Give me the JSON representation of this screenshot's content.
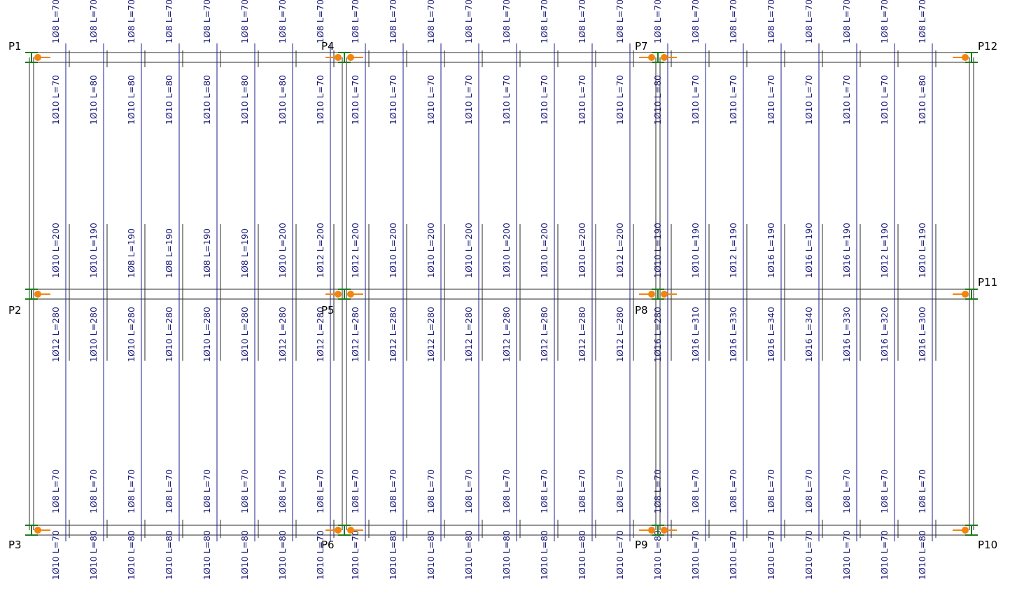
{
  "colors": {
    "text": "#1a1a7a",
    "beam_line": "#2a2a2a",
    "rebar_line": "#1c1c8c",
    "node": "#f2850f",
    "support": "#1e7a1e"
  },
  "nodes": {
    "P1": "P1",
    "P2": "P2",
    "P3": "P3",
    "P4": "P4",
    "P5": "P5",
    "P6": "P6",
    "P7": "P7",
    "P8": "P8",
    "P9": "P9",
    "P10": "P10",
    "P11": "P11",
    "P12": "P12"
  },
  "slabs": [
    {
      "name": "slab-left",
      "strips": [
        {
          "top_a": "1Ø8 L=70",
          "top_b": "1Ø10 L=70",
          "mid_a": "1Ø10 L=200",
          "mid_b": "1Ø12 L=280",
          "bot_a": "1Ø8 L=70",
          "bot_b": "1Ø10 L=70"
        },
        {
          "top_a": "1Ø8 L=70",
          "top_b": "1Ø10 L=80",
          "mid_a": "1Ø10 L=190",
          "mid_b": "1Ø10 L=280",
          "bot_a": "1Ø8 L=70",
          "bot_b": "1Ø10 L=80"
        },
        {
          "top_a": "1Ø8 L=70",
          "top_b": "1Ø10 L=80",
          "mid_a": "1Ø8 L=190",
          "mid_b": "1Ø10 L=280",
          "bot_a": "1Ø8 L=70",
          "bot_b": "1Ø10 L=80"
        },
        {
          "top_a": "1Ø8 L=70",
          "top_b": "1Ø10 L=80",
          "mid_a": "1Ø8 L=190",
          "mid_b": "1Ø10 L=280",
          "bot_a": "1Ø8 L=70",
          "bot_b": "1Ø10 L=80"
        },
        {
          "top_a": "1Ø8 L=70",
          "top_b": "1Ø10 L=80",
          "mid_a": "1Ø8 L=190",
          "mid_b": "1Ø10 L=280",
          "bot_a": "1Ø8 L=70",
          "bot_b": "1Ø10 L=80"
        },
        {
          "top_a": "1Ø8 L=70",
          "top_b": "1Ø10 L=80",
          "mid_a": "1Ø8 L=190",
          "mid_b": "1Ø10 L=280",
          "bot_a": "1Ø8 L=70",
          "bot_b": "1Ø10 L=80"
        },
        {
          "top_a": "1Ø8 L=70",
          "top_b": "1Ø10 L=80",
          "mid_a": "1Ø10 L=200",
          "mid_b": "1Ø12 L=280",
          "bot_a": "1Ø8 L=70",
          "bot_b": "1Ø10 L=80"
        },
        {
          "top_a": "1Ø8 L=70",
          "top_b": "1Ø10 L=70",
          "mid_a": "1Ø12 L=200",
          "mid_b": "1Ø12 L=280",
          "bot_a": "1Ø8 L=70",
          "bot_b": "1Ø10 L=70"
        }
      ]
    },
    {
      "name": "slab-middle",
      "strips": [
        {
          "top_a": "1Ø8 L=70",
          "top_b": "1Ø10 L=70",
          "mid_a": "1Ø12 L=200",
          "mid_b": "1Ø12 L=280",
          "bot_a": "1Ø8 L=70",
          "bot_b": "1Ø10 L=70"
        },
        {
          "top_a": "1Ø8 L=70",
          "top_b": "1Ø10 L=70",
          "mid_a": "1Ø10 L=200",
          "mid_b": "1Ø12 L=280",
          "bot_a": "1Ø8 L=70",
          "bot_b": "1Ø10 L=80"
        },
        {
          "top_a": "1Ø8 L=70",
          "top_b": "1Ø10 L=70",
          "mid_a": "1Ø10 L=200",
          "mid_b": "1Ø12 L=280",
          "bot_a": "1Ø8 L=70",
          "bot_b": "1Ø10 L=80"
        },
        {
          "top_a": "1Ø8 L=70",
          "top_b": "1Ø10 L=70",
          "mid_a": "1Ø10 L=200",
          "mid_b": "1Ø12 L=280",
          "bot_a": "1Ø8 L=70",
          "bot_b": "1Ø10 L=80"
        },
        {
          "top_a": "1Ø8 L=70",
          "top_b": "1Ø10 L=70",
          "mid_a": "1Ø10 L=200",
          "mid_b": "1Ø12 L=280",
          "bot_a": "1Ø8 L=70",
          "bot_b": "1Ø10 L=80"
        },
        {
          "top_a": "1Ø8 L=70",
          "top_b": "1Ø10 L=70",
          "mid_a": "1Ø10 L=200",
          "mid_b": "1Ø12 L=280",
          "bot_a": "1Ø8 L=70",
          "bot_b": "1Ø10 L=80"
        },
        {
          "top_a": "1Ø8 L=70",
          "top_b": "1Ø10 L=70",
          "mid_a": "1Ø10 L=200",
          "mid_b": "1Ø12 L=280",
          "bot_a": "1Ø8 L=70",
          "bot_b": "1Ø10 L=80"
        },
        {
          "top_a": "1Ø8 L=70",
          "top_b": "1Ø10 L=70",
          "mid_a": "1Ø12 L=200",
          "mid_b": "1Ø12 L=280",
          "bot_a": "1Ø8 L=70",
          "bot_b": "1Ø10 L=70"
        }
      ]
    },
    {
      "name": "slab-right",
      "strips": [
        {
          "top_a": "1Ø8 L=70",
          "top_b": "1Ø10 L=80",
          "mid_a": "1Ø10 L=190",
          "mid_b": "1Ø16 L=280",
          "bot_a": "1Ø8 L=70",
          "bot_b": "1Ø10 L=80"
        },
        {
          "top_a": "1Ø8 L=70",
          "top_b": "1Ø10 L=70",
          "mid_a": "1Ø10 L=190",
          "mid_b": "1Ø16 L=310",
          "bot_a": "1Ø8 L=70",
          "bot_b": "1Ø10 L=70"
        },
        {
          "top_a": "1Ø8 L=70",
          "top_b": "1Ø10 L=70",
          "mid_a": "1Ø12 L=190",
          "mid_b": "1Ø16 L=330",
          "bot_a": "1Ø8 L=70",
          "bot_b": "1Ø10 L=70"
        },
        {
          "top_a": "1Ø8 L=70",
          "top_b": "1Ø10 L=70",
          "mid_a": "1Ø16 L=190",
          "mid_b": "1Ø16 L=340",
          "bot_a": "1Ø8 L=70",
          "bot_b": "1Ø10 L=70"
        },
        {
          "top_a": "1Ø8 L=70",
          "top_b": "1Ø10 L=70",
          "mid_a": "1Ø16 L=190",
          "mid_b": "1Ø16 L=340",
          "bot_a": "1Ø8 L=70",
          "bot_b": "1Ø10 L=70"
        },
        {
          "top_a": "1Ø8 L=70",
          "top_b": "1Ø10 L=70",
          "mid_a": "1Ø16 L=190",
          "mid_b": "1Ø16 L=330",
          "bot_a": "1Ø8 L=70",
          "bot_b": "1Ø10 L=70"
        },
        {
          "top_a": "1Ø8 L=70",
          "top_b": "1Ø10 L=70",
          "mid_a": "1Ø12 L=190",
          "mid_b": "1Ø16 L=320",
          "bot_a": "1Ø8 L=70",
          "bot_b": "1Ø10 L=70"
        },
        {
          "top_a": "1Ø8 L=70",
          "top_b": "1Ø10 L=80",
          "mid_a": "1Ø10 L=190",
          "mid_b": "1Ø16 L=300",
          "bot_a": "1Ø8 L=70",
          "bot_b": "1Ø10 L=80"
        }
      ]
    }
  ]
}
